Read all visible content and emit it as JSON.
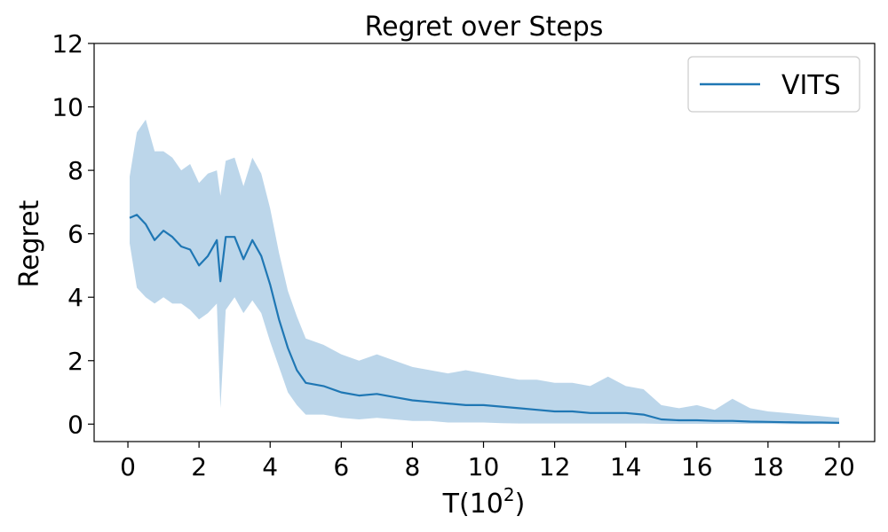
{
  "chart_data": {
    "type": "line",
    "title": "Regret over Steps",
    "xlabel": "T(10",
    "xlabel_sup": "2",
    "xlabel_close": ")",
    "ylabel": "Regret",
    "xlim": [
      -0.95,
      21.0
    ],
    "ylim": [
      -0.55,
      12.0
    ],
    "x_ticks": [
      0,
      2,
      4,
      6,
      8,
      10,
      12,
      14,
      16,
      18,
      20
    ],
    "y_ticks": [
      0,
      2,
      4,
      6,
      8,
      10,
      12
    ],
    "grid": false,
    "legend_position": "top-right",
    "series": [
      {
        "name": "VITS",
        "color": "#1f77b4",
        "band_color": "#a6c8e3",
        "x": [
          0.05,
          0.25,
          0.5,
          0.75,
          1.0,
          1.25,
          1.5,
          1.75,
          2.0,
          2.25,
          2.5,
          2.6,
          2.75,
          3.0,
          3.25,
          3.5,
          3.75,
          4.0,
          4.25,
          4.5,
          4.75,
          5.0,
          5.5,
          6.0,
          6.5,
          7.0,
          7.5,
          8.0,
          8.5,
          9.0,
          9.5,
          10.0,
          10.5,
          11.0,
          11.5,
          12.0,
          12.5,
          13.0,
          13.5,
          14.0,
          14.5,
          15.0,
          15.5,
          16.0,
          16.5,
          17.0,
          17.5,
          18.0,
          18.5,
          19.0,
          19.5,
          20.0
        ],
        "y": [
          6.5,
          6.6,
          6.3,
          5.8,
          6.1,
          5.9,
          5.6,
          5.5,
          5.0,
          5.3,
          5.8,
          4.5,
          5.9,
          5.9,
          5.2,
          5.8,
          5.3,
          4.4,
          3.3,
          2.4,
          1.7,
          1.3,
          1.2,
          1.0,
          0.9,
          0.95,
          0.85,
          0.75,
          0.7,
          0.65,
          0.6,
          0.6,
          0.55,
          0.5,
          0.45,
          0.4,
          0.4,
          0.35,
          0.35,
          0.35,
          0.3,
          0.15,
          0.12,
          0.12,
          0.1,
          0.1,
          0.08,
          0.07,
          0.06,
          0.05,
          0.05,
          0.04
        ],
        "y_lower": [
          5.7,
          4.3,
          4.0,
          3.8,
          4.0,
          3.8,
          3.8,
          3.6,
          3.3,
          3.5,
          3.8,
          0.5,
          3.6,
          4.0,
          3.5,
          3.9,
          3.5,
          2.6,
          1.8,
          1.0,
          0.6,
          0.3,
          0.3,
          0.2,
          0.15,
          0.2,
          0.15,
          0.1,
          0.1,
          0.05,
          0.05,
          0.05,
          0.03,
          0.02,
          0.02,
          0.02,
          0.02,
          0.02,
          0.02,
          0.02,
          0.02,
          0.01,
          0.01,
          0.01,
          0.01,
          0.01,
          0.01,
          0.01,
          0.0,
          0.0,
          0.0,
          0.0
        ],
        "y_upper": [
          7.8,
          9.2,
          9.6,
          8.6,
          8.6,
          8.4,
          8.0,
          8.2,
          7.6,
          7.9,
          8.0,
          7.2,
          8.3,
          8.4,
          7.5,
          8.4,
          7.9,
          6.8,
          5.4,
          4.2,
          3.4,
          2.7,
          2.5,
          2.2,
          2.0,
          2.2,
          2.0,
          1.8,
          1.7,
          1.6,
          1.7,
          1.6,
          1.5,
          1.4,
          1.4,
          1.3,
          1.3,
          1.2,
          1.5,
          1.2,
          1.1,
          0.6,
          0.5,
          0.6,
          0.45,
          0.8,
          0.5,
          0.4,
          0.35,
          0.3,
          0.25,
          0.2
        ]
      }
    ]
  }
}
